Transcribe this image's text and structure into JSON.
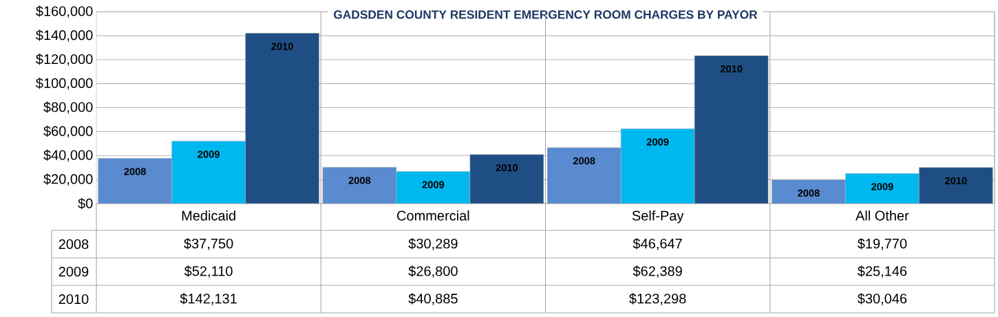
{
  "chart_data": {
    "type": "bar",
    "title": "GADSDEN COUNTY RESIDENT EMERGENCY ROOM CHARGES BY PAYOR",
    "categories": [
      "Medicaid",
      "Commercial",
      "Self-Pay",
      "All Other"
    ],
    "series": [
      {
        "name": "2008",
        "color": "#5a8ad0",
        "values": [
          37750,
          30289,
          46647,
          19770
        ],
        "value_labels": [
          "$37,750",
          "$30,289",
          "$46,647",
          "$19,770"
        ]
      },
      {
        "name": "2009",
        "color": "#00b8f0",
        "values": [
          52110,
          26800,
          62389,
          25146
        ],
        "value_labels": [
          "$52,110",
          "$26,800",
          "$62,389",
          "$25,146"
        ]
      },
      {
        "name": "2010",
        "color": "#1f4e85",
        "values": [
          142131,
          40885,
          123298,
          30046
        ],
        "value_labels": [
          "$142,131",
          "$40,885",
          "$123,298",
          "$30,046"
        ]
      }
    ],
    "ylim": [
      0,
      160000
    ],
    "yticks": [
      {
        "value": 0,
        "label": "$0"
      },
      {
        "value": 20000,
        "label": "$20,000"
      },
      {
        "value": 40000,
        "label": "$40,000"
      },
      {
        "value": 60000,
        "label": "$60,000"
      },
      {
        "value": 80000,
        "label": "$80,000"
      },
      {
        "value": 100000,
        "label": "$100,000"
      },
      {
        "value": 120000,
        "label": "$120,000"
      },
      {
        "value": 140000,
        "label": "$140,000"
      },
      {
        "value": 160000,
        "label": "$160,000"
      }
    ],
    "grid": "y"
  }
}
